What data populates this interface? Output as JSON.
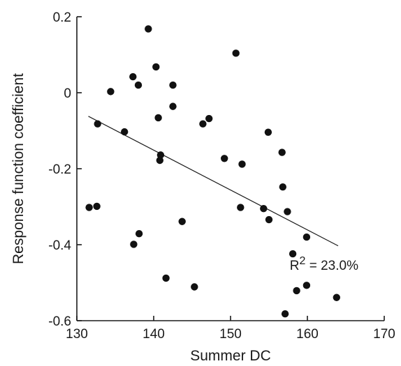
{
  "chart_data": {
    "type": "scatter",
    "title": "",
    "xlabel": "Summer DC",
    "ylabel": "Response function coefficient",
    "xlim": [
      130,
      170
    ],
    "ylim": [
      -0.6,
      0.2
    ],
    "xticks": [
      130,
      140,
      150,
      160,
      170
    ],
    "yticks": [
      -0.6,
      -0.4,
      -0.2,
      0,
      0.2
    ],
    "xtick_labels": [
      "130",
      "140",
      "150",
      "160",
      "170"
    ],
    "ytick_labels": [
      "-0.6",
      "-0.4",
      "-0.2",
      "0",
      "0.2"
    ],
    "grid": false,
    "points": [
      {
        "x": 139.3,
        "y": 0.168
      },
      {
        "x": 150.7,
        "y": 0.104
      },
      {
        "x": 140.3,
        "y": 0.068
      },
      {
        "x": 137.3,
        "y": 0.042
      },
      {
        "x": 138.0,
        "y": 0.02
      },
      {
        "x": 142.5,
        "y": 0.02
      },
      {
        "x": 134.4,
        "y": 0.003
      },
      {
        "x": 142.5,
        "y": -0.036
      },
      {
        "x": 140.6,
        "y": -0.066
      },
      {
        "x": 147.2,
        "y": -0.068
      },
      {
        "x": 132.7,
        "y": -0.082
      },
      {
        "x": 146.4,
        "y": -0.082
      },
      {
        "x": 136.2,
        "y": -0.103
      },
      {
        "x": 154.9,
        "y": -0.104
      },
      {
        "x": 156.7,
        "y": -0.157
      },
      {
        "x": 140.9,
        "y": -0.164
      },
      {
        "x": 149.2,
        "y": -0.173
      },
      {
        "x": 140.8,
        "y": -0.178
      },
      {
        "x": 151.5,
        "y": -0.188
      },
      {
        "x": 156.8,
        "y": -0.248
      },
      {
        "x": 131.6,
        "y": -0.302
      },
      {
        "x": 132.6,
        "y": -0.299
      },
      {
        "x": 151.3,
        "y": -0.302
      },
      {
        "x": 154.3,
        "y": -0.305
      },
      {
        "x": 157.4,
        "y": -0.313
      },
      {
        "x": 155.0,
        "y": -0.334
      },
      {
        "x": 143.7,
        "y": -0.339
      },
      {
        "x": 138.1,
        "y": -0.371
      },
      {
        "x": 159.9,
        "y": -0.38
      },
      {
        "x": 137.4,
        "y": -0.399
      },
      {
        "x": 158.1,
        "y": -0.424
      },
      {
        "x": 141.6,
        "y": -0.488
      },
      {
        "x": 159.9,
        "y": -0.507
      },
      {
        "x": 145.3,
        "y": -0.511
      },
      {
        "x": 158.6,
        "y": -0.521
      },
      {
        "x": 163.8,
        "y": -0.539
      },
      {
        "x": 157.1,
        "y": -0.582
      }
    ],
    "fit_line": {
      "x": [
        131.5,
        164.0
      ],
      "y": [
        -0.062,
        -0.403
      ]
    },
    "annotation": {
      "prefix": "R",
      "superscript": "2",
      "suffix": " = 23.0%",
      "x": 159.8,
      "y": -0.455
    }
  }
}
